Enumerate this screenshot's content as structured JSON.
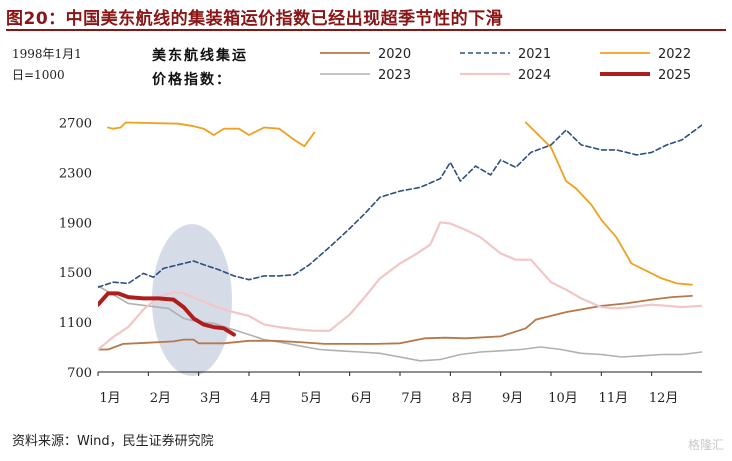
{
  "figure": {
    "title": "图20：中国美东航线的集装箱运价指数已经出现超季节性的下滑",
    "note_line1": "1998年1月1",
    "note_line2": "日=1000",
    "index_label_line1": "美东航线集运",
    "index_label_line2": "价格指数：",
    "source": "资料来源：Wind，民生证券研究院",
    "watermark": "格隆汇"
  },
  "chart_data": {
    "type": "line",
    "title": "",
    "xlabel": "",
    "ylabel": "",
    "ylim": [
      700,
      2800
    ],
    "yticks": [
      700,
      1100,
      1500,
      1900,
      2300,
      2700
    ],
    "xlim": [
      1,
      13
    ],
    "xticks": [
      1,
      2,
      3,
      4,
      5,
      6,
      7,
      8,
      9,
      10,
      11,
      12
    ],
    "xtick_labels": [
      "1月",
      "2月",
      "3月",
      "4月",
      "5月",
      "6月",
      "7月",
      "8月",
      "9月",
      "10月",
      "11月",
      "12月"
    ],
    "grid": false,
    "legend_position": "top",
    "annotation": "ellipse highlighting 2025 decline around February–March",
    "series": [
      {
        "name": "2020",
        "color": "#b5784a",
        "dash": "solid",
        "width": 1.8,
        "x": [
          1,
          1.2,
          1.5,
          2,
          2.5,
          2.7,
          2.9,
          3,
          3.5,
          4,
          4.5,
          5,
          5.5,
          6,
          6.5,
          7,
          7.5,
          7.9,
          8.3,
          9,
          9.5,
          9.7,
          10,
          10.3,
          11,
          11.5,
          12,
          12.4,
          12.8
        ],
        "y": [
          880,
          880,
          925,
          935,
          945,
          960,
          960,
          930,
          930,
          950,
          950,
          940,
          925,
          925,
          925,
          930,
          970,
          975,
          970,
          985,
          1050,
          1120,
          1150,
          1180,
          1230,
          1250,
          1280,
          1300,
          1310
        ]
      },
      {
        "name": "2021",
        "color": "#2e4e7e",
        "dash": "dashed",
        "width": 1.6,
        "x": [
          1,
          1.3,
          1.6,
          1.9,
          2.1,
          2.3,
          2.6,
          2.9,
          3.1,
          3.4,
          3.7,
          4,
          4.3,
          4.6,
          4.9,
          5.2,
          5.6,
          6,
          6.3,
          6.6,
          7,
          7.4,
          7.8,
          8,
          8.2,
          8.5,
          8.8,
          9,
          9.3,
          9.6,
          10,
          10.3,
          10.6,
          11,
          11.3,
          11.7,
          12,
          12.3,
          12.6,
          13
        ],
        "y": [
          1380,
          1420,
          1410,
          1490,
          1460,
          1530,
          1560,
          1590,
          1560,
          1520,
          1470,
          1440,
          1470,
          1470,
          1480,
          1560,
          1700,
          1850,
          1970,
          2100,
          2150,
          2180,
          2250,
          2380,
          2230,
          2350,
          2280,
          2400,
          2340,
          2460,
          2520,
          2640,
          2520,
          2480,
          2480,
          2440,
          2460,
          2520,
          2560,
          2680
        ]
      },
      {
        "name": "2022",
        "color": "#f0a020",
        "dash": "solid",
        "width": 1.8,
        "segments": [
          {
            "x": [
              1.2,
              1.3,
              1.45,
              1.55,
              2.6,
              2.9,
              3.1,
              3.3,
              3.5,
              3.8,
              4.0,
              4.3,
              4.6,
              4.9,
              5.1,
              5.3
            ],
            "y": [
              2660,
              2650,
              2660,
              2700,
              2690,
              2670,
              2650,
              2600,
              2650,
              2650,
              2600,
              2660,
              2650,
              2560,
              2510,
              2620
            ]
          },
          {
            "x": [
              9.5,
              10,
              10.3,
              10.5,
              10.8,
              11,
              11.3,
              11.6,
              11.9,
              12.2,
              12.5,
              12.8
            ],
            "y": [
              2700,
              2500,
              2230,
              2170,
              2040,
              1920,
              1780,
              1570,
              1510,
              1450,
              1410,
              1400
            ]
          }
        ]
      },
      {
        "name": "2023",
        "color": "#b0b0b0",
        "dash": "solid",
        "width": 1.6,
        "x": [
          1,
          1.3,
          1.6,
          2,
          2.4,
          2.7,
          3,
          3.3,
          3.6,
          4,
          4.3,
          4.6,
          5,
          5.4,
          5.8,
          6.2,
          6.6,
          7,
          7.4,
          7.8,
          8.2,
          8.6,
          9,
          9.4,
          9.8,
          10.2,
          10.6,
          11,
          11.4,
          11.8,
          12.2,
          12.6,
          13
        ],
        "y": [
          1390,
          1320,
          1250,
          1230,
          1210,
          1130,
          1100,
          1090,
          1050,
          1000,
          960,
          940,
          910,
          880,
          870,
          860,
          850,
          820,
          790,
          800,
          840,
          860,
          870,
          880,
          900,
          880,
          850,
          840,
          820,
          830,
          840,
          840,
          860
        ]
      },
      {
        "name": "2024",
        "color": "#f2c6c6",
        "dash": "solid",
        "width": 2.2,
        "x": [
          1,
          1.3,
          1.6,
          1.9,
          2.2,
          2.5,
          2.7,
          3,
          3.3,
          3.6,
          4,
          4.3,
          4.6,
          5,
          5.3,
          5.6,
          6,
          6.3,
          6.6,
          7,
          7.3,
          7.6,
          7.8,
          8,
          8.3,
          8.6,
          9,
          9.3,
          9.6,
          10,
          10.3,
          10.6,
          11,
          11.3,
          11.6,
          12,
          12.3,
          12.6,
          13
        ],
        "y": [
          880,
          980,
          1060,
          1200,
          1300,
          1340,
          1330,
          1280,
          1230,
          1190,
          1150,
          1080,
          1060,
          1040,
          1030,
          1030,
          1160,
          1300,
          1450,
          1570,
          1640,
          1720,
          1900,
          1890,
          1840,
          1780,
          1650,
          1600,
          1600,
          1420,
          1360,
          1290,
          1220,
          1210,
          1220,
          1240,
          1230,
          1220,
          1230
        ]
      },
      {
        "name": "2025",
        "color": "#b01d1d",
        "dash": "solid",
        "width": 4,
        "x": [
          1,
          1.2,
          1.4,
          1.6,
          1.9,
          2.2,
          2.5,
          2.7,
          2.9,
          3.1,
          3.3,
          3.5,
          3.7
        ],
        "y": [
          1240,
          1330,
          1330,
          1300,
          1290,
          1290,
          1280,
          1220,
          1130,
          1080,
          1060,
          1050,
          1000
        ]
      }
    ]
  },
  "legend": {
    "items": [
      {
        "label": "2020",
        "color": "#b5784a",
        "dash": "solid",
        "width": 1.8
      },
      {
        "label": "2021",
        "color": "#2e4e7e",
        "dash": "dashed",
        "width": 1.6
      },
      {
        "label": "2022",
        "color": "#f0a020",
        "dash": "solid",
        "width": 1.8
      },
      {
        "label": "2023",
        "color": "#b0b0b0",
        "dash": "solid",
        "width": 1.6
      },
      {
        "label": "2024",
        "color": "#f2c6c6",
        "dash": "solid",
        "width": 2.2
      },
      {
        "label": "2025",
        "color": "#b01d1d",
        "dash": "solid",
        "width": 4
      }
    ]
  },
  "colors": {
    "title": "#8b1414",
    "axis": "#222222",
    "ellipse": "#c8cfe0"
  }
}
